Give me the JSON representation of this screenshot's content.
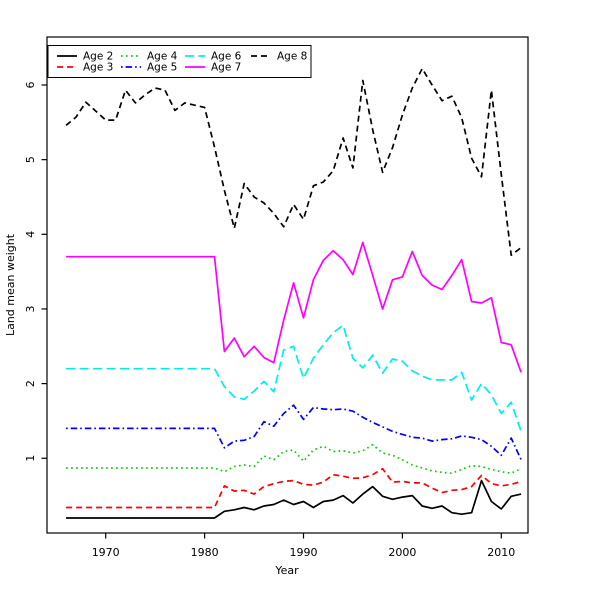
{
  "chart_data": {
    "type": "line",
    "title": "",
    "xlabel": "Year",
    "ylabel": "Land mean weight",
    "grid": false,
    "legend_position": "top-left",
    "legend_columns": 4,
    "x_ticks": [
      1970,
      1980,
      1990,
      2000,
      2010
    ],
    "y_ticks": [
      1,
      2,
      3,
      4,
      5,
      6
    ],
    "xlim": [
      1964.1,
      2012.9
    ],
    "ylim": [
      0,
      6.65
    ],
    "x": [
      1966,
      1967,
      1968,
      1969,
      1970,
      1971,
      1972,
      1973,
      1974,
      1975,
      1976,
      1977,
      1978,
      1979,
      1980,
      1981,
      1982,
      1983,
      1984,
      1985,
      1986,
      1987,
      1988,
      1989,
      1990,
      1991,
      1992,
      1993,
      1994,
      1995,
      1996,
      1997,
      1998,
      1999,
      2000,
      2001,
      2002,
      2003,
      2004,
      2005,
      2006,
      2007,
      2008,
      2009,
      2010,
      2011,
      2012
    ],
    "series": [
      {
        "name": "Age 2",
        "color": "#000000",
        "linestyle": "solid",
        "values": [
          0.2,
          0.2,
          0.2,
          0.2,
          0.2,
          0.2,
          0.2,
          0.2,
          0.2,
          0.2,
          0.2,
          0.2,
          0.2,
          0.2,
          0.2,
          0.2,
          0.29,
          0.31,
          0.34,
          0.31,
          0.36,
          0.38,
          0.44,
          0.38,
          0.42,
          0.34,
          0.42,
          0.44,
          0.5,
          0.4,
          0.52,
          0.62,
          0.49,
          0.45,
          0.48,
          0.5,
          0.36,
          0.33,
          0.36,
          0.27,
          0.25,
          0.27,
          0.7,
          0.42,
          0.32,
          0.49,
          0.52
        ]
      },
      {
        "name": "Age 3",
        "color": "#ff0000",
        "linestyle": "dashed",
        "values": [
          0.34,
          0.34,
          0.34,
          0.34,
          0.34,
          0.34,
          0.34,
          0.34,
          0.34,
          0.34,
          0.34,
          0.34,
          0.34,
          0.34,
          0.34,
          0.34,
          0.63,
          0.56,
          0.57,
          0.52,
          0.62,
          0.66,
          0.69,
          0.7,
          0.65,
          0.64,
          0.68,
          0.78,
          0.76,
          0.73,
          0.74,
          0.78,
          0.86,
          0.68,
          0.69,
          0.67,
          0.67,
          0.6,
          0.54,
          0.57,
          0.58,
          0.62,
          0.77,
          0.66,
          0.63,
          0.65,
          0.69
        ]
      },
      {
        "name": "Age 4",
        "color": "#00cd00",
        "linestyle": "dotted",
        "values": [
          0.87,
          0.87,
          0.87,
          0.87,
          0.87,
          0.87,
          0.87,
          0.87,
          0.87,
          0.87,
          0.87,
          0.87,
          0.87,
          0.87,
          0.87,
          0.87,
          0.82,
          0.89,
          0.91,
          0.89,
          1.03,
          0.98,
          1.09,
          1.11,
          0.96,
          1.11,
          1.16,
          1.09,
          1.1,
          1.07,
          1.1,
          1.18,
          1.07,
          1.04,
          0.98,
          0.91,
          0.87,
          0.83,
          0.81,
          0.8,
          0.85,
          0.9,
          0.89,
          0.85,
          0.82,
          0.8,
          0.86
        ]
      },
      {
        "name": "Age 5",
        "color": "#0000ff",
        "linestyle": "dashdot",
        "values": [
          1.4,
          1.4,
          1.4,
          1.4,
          1.4,
          1.4,
          1.4,
          1.4,
          1.4,
          1.4,
          1.4,
          1.4,
          1.4,
          1.4,
          1.4,
          1.4,
          1.14,
          1.23,
          1.24,
          1.29,
          1.49,
          1.43,
          1.6,
          1.71,
          1.52,
          1.68,
          1.66,
          1.65,
          1.66,
          1.63,
          1.55,
          1.48,
          1.42,
          1.36,
          1.32,
          1.28,
          1.27,
          1.23,
          1.25,
          1.26,
          1.3,
          1.28,
          1.25,
          1.16,
          1.04,
          1.27,
          0.98
        ]
      },
      {
        "name": "Age 6",
        "color": "#00eded",
        "linestyle": "longdash",
        "values": [
          2.2,
          2.2,
          2.2,
          2.2,
          2.2,
          2.2,
          2.2,
          2.2,
          2.2,
          2.2,
          2.2,
          2.2,
          2.2,
          2.2,
          2.2,
          2.2,
          1.96,
          1.82,
          1.79,
          1.9,
          2.03,
          1.89,
          2.45,
          2.5,
          2.07,
          2.34,
          2.52,
          2.68,
          2.78,
          2.34,
          2.21,
          2.38,
          2.14,
          2.33,
          2.3,
          2.17,
          2.1,
          2.05,
          2.05,
          2.05,
          2.15,
          1.78,
          2.0,
          1.85,
          1.6,
          1.75,
          1.36
        ]
      },
      {
        "name": "Age 7",
        "color": "#ff00ff",
        "linestyle": "solid",
        "values": [
          3.7,
          3.7,
          3.7,
          3.7,
          3.7,
          3.7,
          3.7,
          3.7,
          3.7,
          3.7,
          3.7,
          3.7,
          3.7,
          3.7,
          3.7,
          3.7,
          2.43,
          2.61,
          2.36,
          2.5,
          2.35,
          2.28,
          2.85,
          3.35,
          2.88,
          3.39,
          3.65,
          3.78,
          3.66,
          3.46,
          3.89,
          3.45,
          3.0,
          3.39,
          3.43,
          3.77,
          3.45,
          3.32,
          3.26,
          3.45,
          3.66,
          3.1,
          3.08,
          3.15,
          2.55,
          2.52,
          2.15
        ]
      },
      {
        "name": "Age 8",
        "color": "#000000",
        "linestyle": "dashed",
        "values": [
          5.46,
          5.57,
          5.77,
          5.65,
          5.53,
          5.53,
          5.93,
          5.76,
          5.87,
          5.96,
          5.93,
          5.66,
          5.76,
          5.73,
          5.7,
          5.17,
          4.59,
          4.08,
          4.68,
          4.5,
          4.42,
          4.28,
          4.1,
          4.4,
          4.2,
          4.65,
          4.7,
          4.85,
          5.29,
          4.89,
          6.06,
          5.4,
          4.83,
          5.16,
          5.6,
          5.96,
          6.22,
          6.0,
          5.79,
          5.85,
          5.56,
          5.02,
          4.77,
          5.93,
          4.8,
          3.72,
          3.82
        ]
      }
    ]
  }
}
